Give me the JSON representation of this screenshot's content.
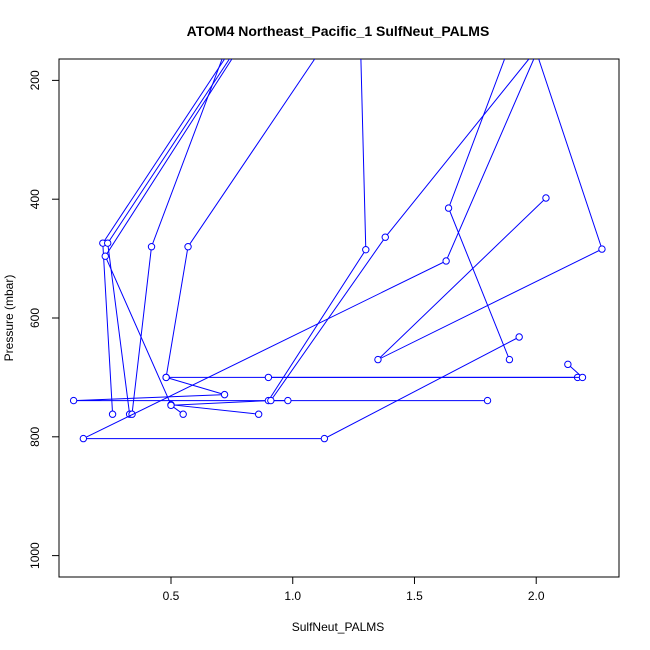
{
  "chart_data": {
    "type": "line",
    "title": "ATOM4 Northeast_Pacific_1 SulfNeut_PALMS",
    "xlabel": "SulfNeut_PALMS",
    "ylabel": "Pressure (mbar)",
    "xlim": [
      0.04,
      2.34
    ],
    "ylim": [
      1036,
      164
    ],
    "y_reversed": true,
    "grid": false,
    "legend": "none",
    "x_ticks": [
      0.5,
      1.0,
      1.5,
      2.0
    ],
    "x_tick_labels": [
      "0.5",
      "1.0",
      "1.5",
      "2.0"
    ],
    "y_ticks": [
      200,
      400,
      600,
      800,
      1000
    ],
    "y_tick_labels": [
      "200",
      "400",
      "600",
      "800",
      "1000"
    ],
    "series": [
      {
        "color": "#0000ff",
        "marker": "open-circle",
        "points": [
          {
            "x": 0.72,
            "y": 164
          },
          {
            "x": 0.22,
            "y": 474
          },
          {
            "x": 0.26,
            "y": 762
          }
        ]
      },
      {
        "color": "#0000ff",
        "marker": "open-circle",
        "points": [
          {
            "x": 0.74,
            "y": 164
          },
          {
            "x": 0.24,
            "y": 474
          },
          {
            "x": 0.33,
            "y": 762
          }
        ]
      },
      {
        "color": "#0000ff",
        "marker": "open-circle",
        "points": [
          {
            "x": 0.75,
            "y": 164
          },
          {
            "x": 0.23,
            "y": 496
          },
          {
            "x": 0.5,
            "y": 746
          },
          {
            "x": 0.86,
            "y": 762
          }
        ]
      },
      {
        "color": "#0000ff",
        "marker": "open-circle",
        "points": [
          {
            "x": 0.71,
            "y": 164
          },
          {
            "x": 0.42,
            "y": 480
          },
          {
            "x": 0.34,
            "y": 762
          }
        ]
      },
      {
        "color": "#0000ff",
        "marker": "open-circle",
        "points": [
          {
            "x": 1.09,
            "y": 164
          },
          {
            "x": 0.57,
            "y": 480
          },
          {
            "x": 0.48,
            "y": 700
          },
          {
            "x": 0.72,
            "y": 729
          },
          {
            "x": 0.1,
            "y": 739
          },
          {
            "x": 1.8,
            "y": 739
          }
        ]
      },
      {
        "color": "#0000ff",
        "marker": "open-circle",
        "points": [
          {
            "x": 1.28,
            "y": 164
          },
          {
            "x": 1.3,
            "y": 485
          },
          {
            "x": 0.9,
            "y": 739
          },
          {
            "x": 0.5,
            "y": 747
          },
          {
            "x": 0.55,
            "y": 762
          }
        ]
      },
      {
        "color": "#0000ff",
        "marker": "open-circle",
        "points": [
          {
            "x": 1.87,
            "y": 164
          },
          {
            "x": 1.64,
            "y": 415
          },
          {
            "x": 1.89,
            "y": 670
          }
        ]
      },
      {
        "color": "#0000ff",
        "marker": "open-circle",
        "points": [
          {
            "x": 1.97,
            "y": 164
          },
          {
            "x": 1.38,
            "y": 464
          },
          {
            "x": 0.91,
            "y": 739
          },
          {
            "x": 0.98,
            "y": 739
          }
        ]
      },
      {
        "color": "#0000ff",
        "marker": "open-circle",
        "points": [
          {
            "x": 1.99,
            "y": 164
          },
          {
            "x": 1.63,
            "y": 504
          },
          {
            "x": 0.14,
            "y": 803
          },
          {
            "x": 1.13,
            "y": 803
          },
          {
            "x": 1.93,
            "y": 632
          }
        ]
      },
      {
        "color": "#0000ff",
        "marker": "open-circle",
        "points": [
          {
            "x": 2.01,
            "y": 164
          },
          {
            "x": 2.27,
            "y": 484
          },
          {
            "x": 1.35,
            "y": 670
          },
          {
            "x": 2.04,
            "y": 398
          }
        ]
      },
      {
        "color": "#0000ff",
        "marker": "open-circle",
        "points": [
          {
            "x": 0.48,
            "y": 700
          },
          {
            "x": 2.17,
            "y": 700
          }
        ]
      },
      {
        "color": "#0000ff",
        "marker": "open-circle",
        "points": [
          {
            "x": 0.9,
            "y": 700
          },
          {
            "x": 2.19,
            "y": 700
          },
          {
            "x": 2.13,
            "y": 678
          }
        ]
      }
    ]
  }
}
